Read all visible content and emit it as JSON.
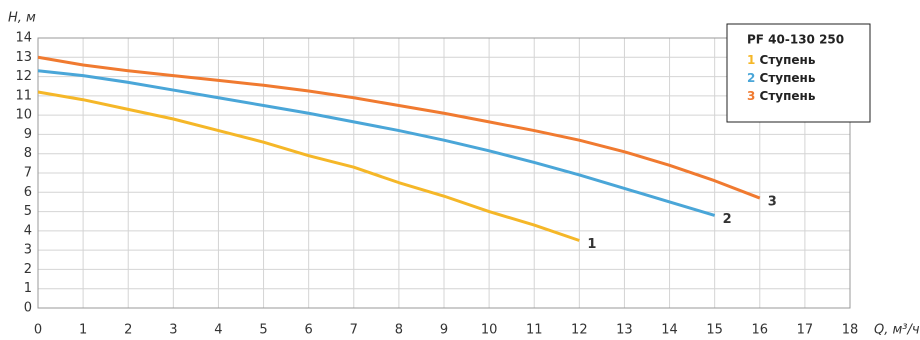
{
  "chart_data": {
    "type": "line",
    "y_label": "H, м",
    "x_label": "Q, м³/ч",
    "legend_title": "PF 40-130 250",
    "xlim": [
      0,
      18
    ],
    "xticks": [
      0,
      1,
      2,
      3,
      4,
      5,
      6,
      7,
      8,
      9,
      10,
      11,
      12,
      13,
      14,
      15,
      16,
      17,
      18
    ],
    "ylim": [
      0,
      14
    ],
    "yticks": [
      0,
      1,
      2,
      3,
      4,
      5,
      6,
      7,
      8,
      9,
      10,
      11,
      12,
      13,
      14
    ],
    "grid": true,
    "legend": "upper right",
    "series": [
      {
        "label": "1",
        "name": "Ступень",
        "color": "#f5b728",
        "x": [
          0,
          1,
          2,
          3,
          4,
          5,
          6,
          7,
          8,
          9,
          10,
          11,
          12
        ],
        "values": [
          11.2,
          10.8,
          10.3,
          9.8,
          9.2,
          8.6,
          7.9,
          7.3,
          6.5,
          5.8,
          5.0,
          4.3,
          3.5
        ]
      },
      {
        "label": "2",
        "name": "Ступень",
        "color": "#4aa6d8",
        "x": [
          0,
          1,
          2,
          3,
          4,
          5,
          6,
          7,
          8,
          9,
          10,
          11,
          12,
          13,
          14,
          15
        ],
        "values": [
          12.3,
          12.05,
          11.7,
          11.3,
          10.9,
          10.5,
          10.1,
          9.65,
          9.2,
          8.7,
          8.15,
          7.55,
          6.9,
          6.2,
          5.5,
          4.8
        ]
      },
      {
        "label": "3",
        "name": "Ступень",
        "color": "#f07a30",
        "x": [
          0,
          1,
          2,
          3,
          4,
          5,
          6,
          7,
          8,
          9,
          10,
          11,
          12,
          13,
          14,
          15,
          16
        ],
        "values": [
          13.0,
          12.6,
          12.3,
          12.05,
          11.8,
          11.55,
          11.25,
          10.9,
          10.5,
          10.1,
          9.65,
          9.2,
          8.7,
          8.1,
          7.4,
          6.6,
          5.7
        ]
      }
    ]
  }
}
